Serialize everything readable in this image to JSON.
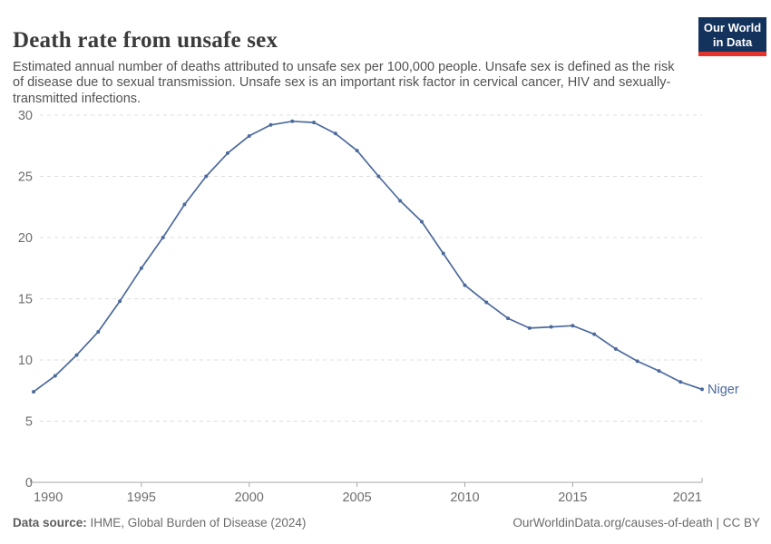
{
  "header": {
    "title": "Death rate from unsafe sex",
    "subtitle": "Estimated annual number of deaths attributed to unsafe sex per 100,000 people. Unsafe sex is defined as the risk of disease due to sexual transmission. Unsafe sex is an important risk factor in cervical cancer, HIV and sexually-transmitted infections.",
    "logo": {
      "line1": "Our World",
      "line2": "in Data"
    }
  },
  "chart_data": {
    "type": "line",
    "title": "Death rate from unsafe sex",
    "x": [
      1990,
      1991,
      1992,
      1993,
      1994,
      1995,
      1996,
      1997,
      1998,
      1999,
      2000,
      2001,
      2002,
      2003,
      2004,
      2005,
      2006,
      2007,
      2008,
      2009,
      2010,
      2011,
      2012,
      2013,
      2014,
      2015,
      2016,
      2017,
      2018,
      2019,
      2020,
      2021
    ],
    "series": [
      {
        "name": "Niger",
        "color": "#4c6a9c",
        "values": [
          7.4,
          8.7,
          10.4,
          12.3,
          14.8,
          17.5,
          20.0,
          22.7,
          25.0,
          26.9,
          28.3,
          29.2,
          29.5,
          29.4,
          28.5,
          27.1,
          25.0,
          23.0,
          21.3,
          18.7,
          16.1,
          14.7,
          13.4,
          12.6,
          12.7,
          12.8,
          12.1,
          10.9,
          9.9,
          9.1,
          8.2,
          7.6
        ]
      }
    ],
    "xlabel": "",
    "ylabel": "",
    "ylim": [
      0,
      30
    ],
    "xlim": [
      1990,
      2021
    ],
    "y_ticks": [
      0,
      5,
      10,
      15,
      20,
      25,
      30
    ],
    "x_ticks": [
      1990,
      1995,
      2000,
      2005,
      2010,
      2015,
      2021
    ],
    "grid": "horizontal-dashed",
    "legend_position": "end-of-line-label"
  },
  "colors": {
    "line": "#4c6a9c",
    "grid": "#dddddd",
    "axis": "#a5a5a5",
    "tick_text": "#6e6e6e",
    "logo_bg": "#14335c",
    "logo_accent": "#e2342c"
  },
  "footer": {
    "datasource_label": "Data source:",
    "datasource_text": " IHME, Global Burden of Disease (2024)",
    "credit": "OurWorldinData.org/causes-of-death | CC BY"
  }
}
